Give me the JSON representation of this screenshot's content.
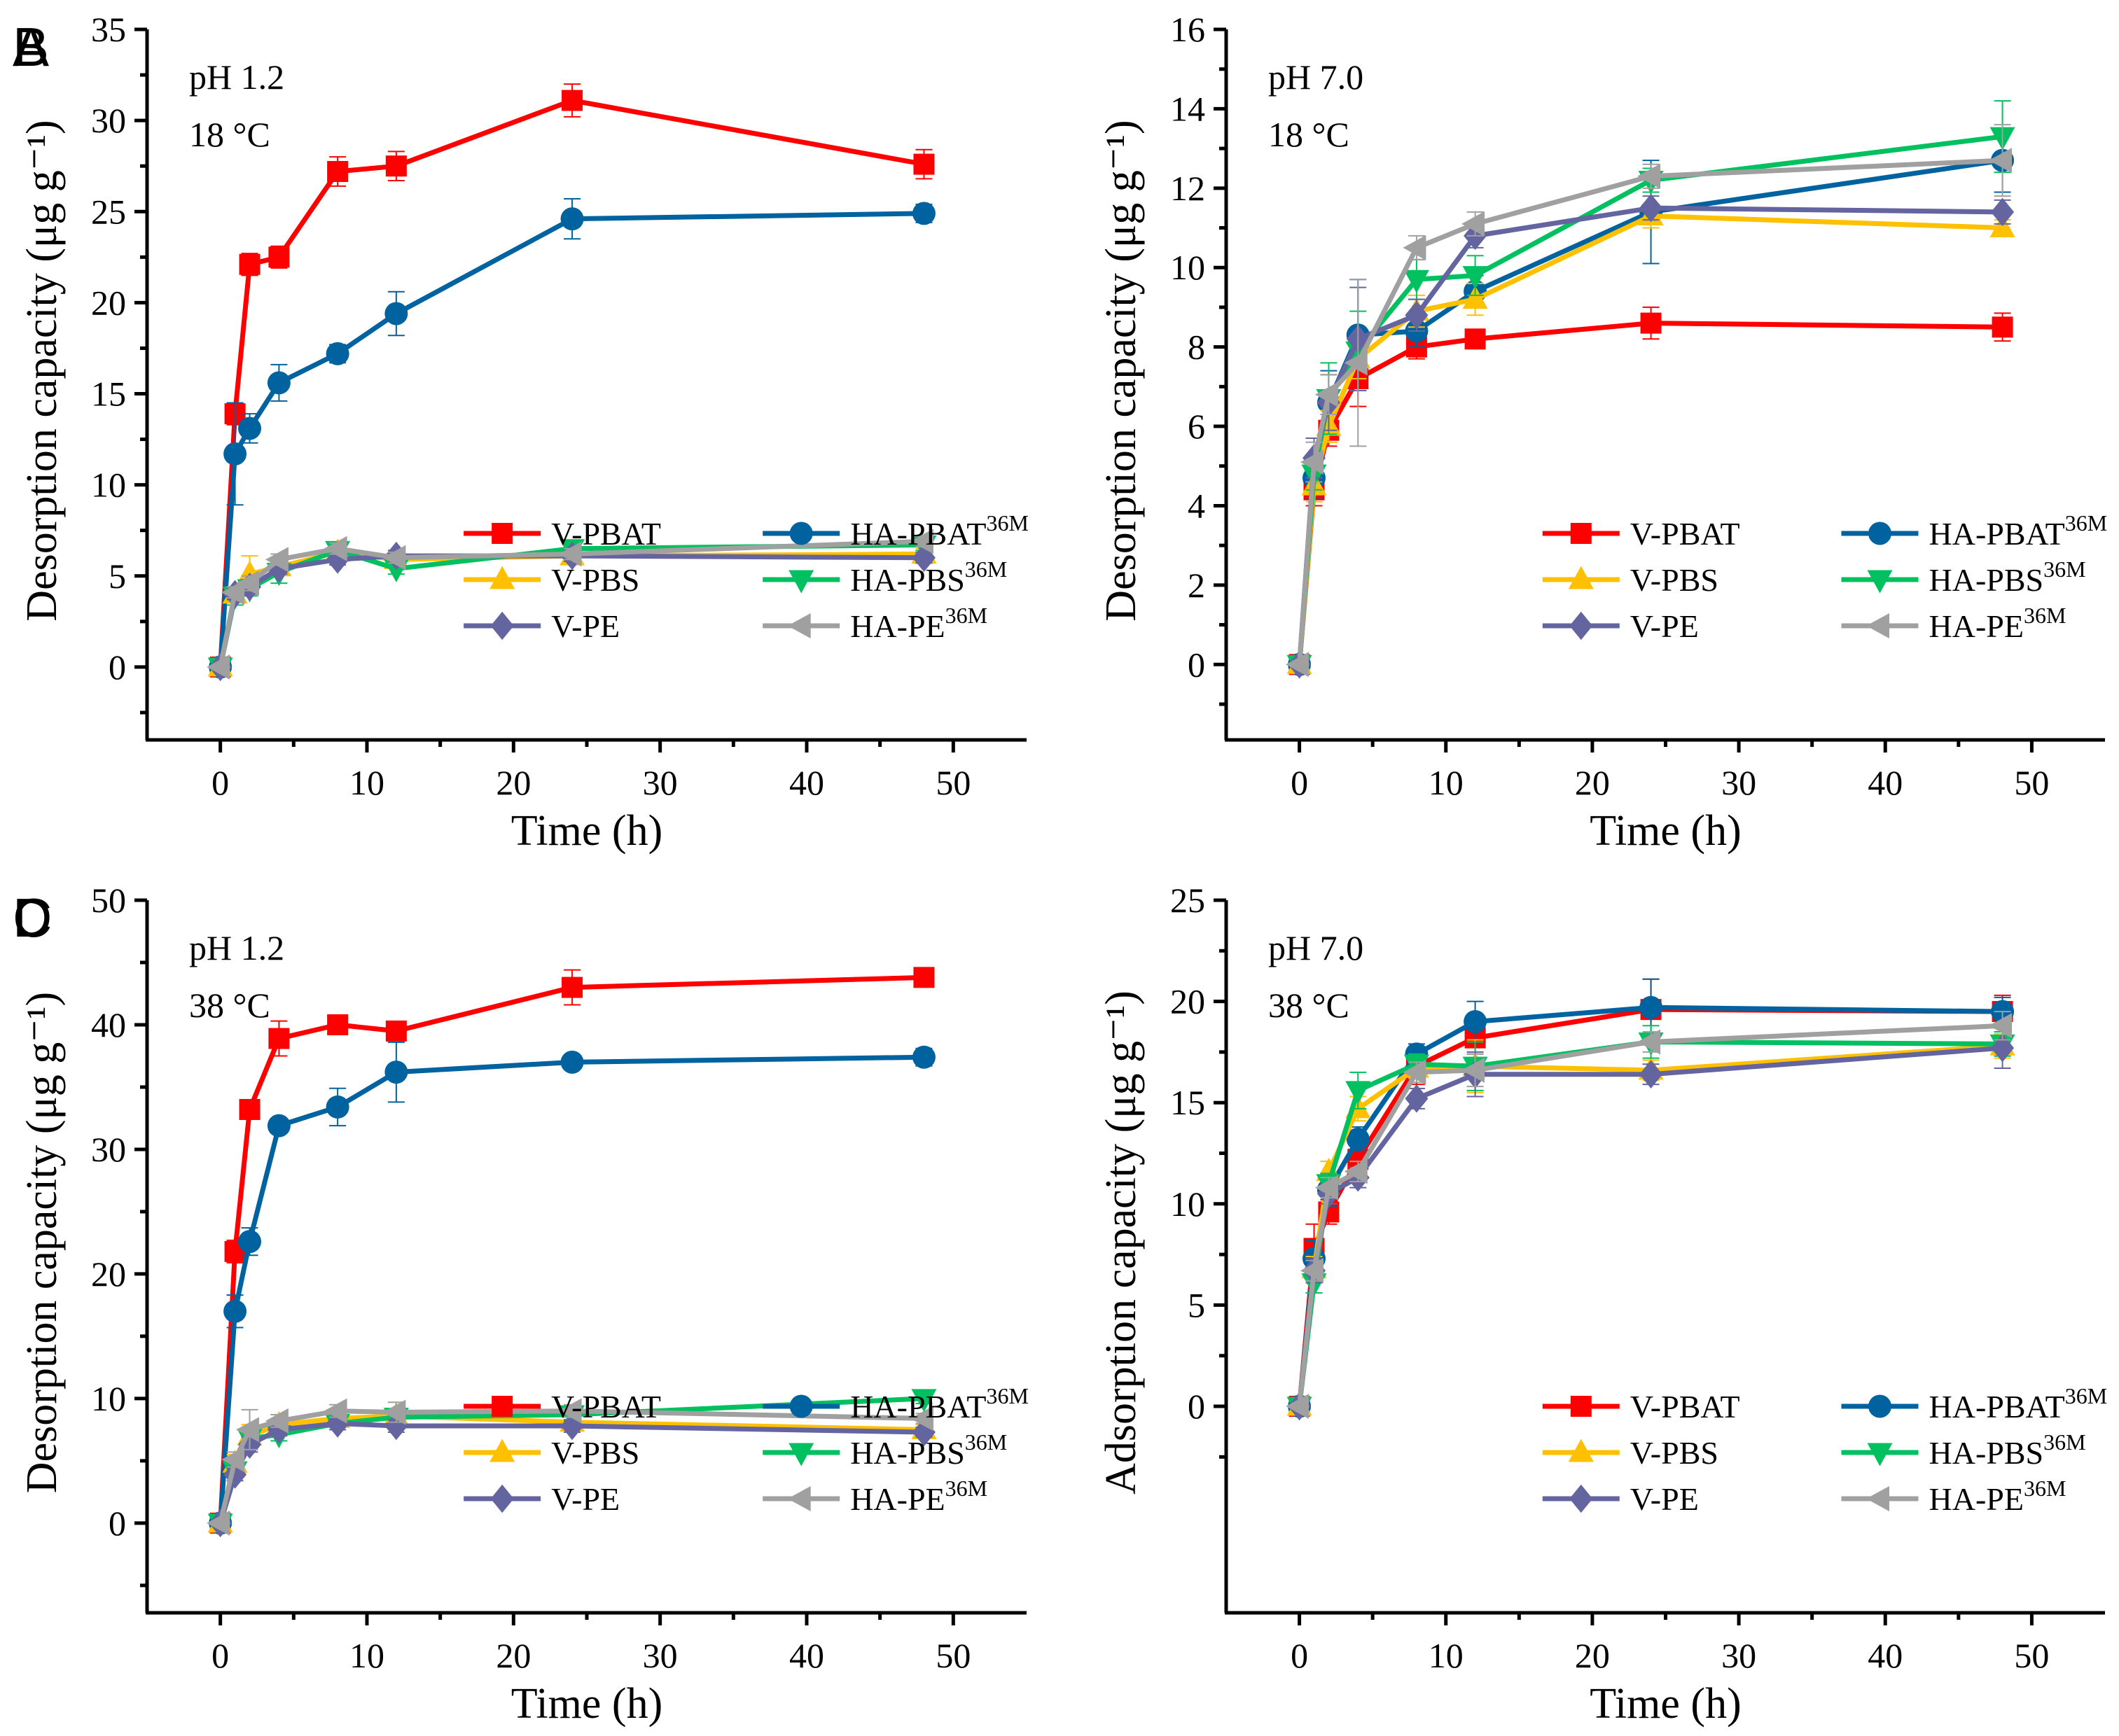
{
  "figure": {
    "series_styles": [
      {
        "name": "V-PBAT",
        "sup": "",
        "color": "#FF0000",
        "marker": "square"
      },
      {
        "name": "HA-PBAT",
        "sup": "36M",
        "color": "#0063A0",
        "marker": "circle"
      },
      {
        "name": "V-PBS",
        "sup": "",
        "color": "#FFC000",
        "marker": "triangle-up"
      },
      {
        "name": "HA-PBS",
        "sup": "36M",
        "color": "#00C060",
        "marker": "triangle-down"
      },
      {
        "name": "V-PE",
        "sup": "",
        "color": "#6464A0",
        "marker": "diamond"
      },
      {
        "name": "HA-PE",
        "sup": "36M",
        "color": "#A0A0A0",
        "marker": "triangle-left"
      }
    ]
  },
  "chart_data": [
    {
      "panel": "A",
      "type": "line",
      "annotation": [
        "pH 1.2",
        "18 °C"
      ],
      "xlabel": "Time (h)",
      "ylabel": "Desorption capacity (μg g⁻¹)",
      "xlim": [
        -5,
        55
      ],
      "ylim": [
        -4,
        35
      ],
      "xticks": [
        0,
        10,
        20,
        30,
        40,
        50
      ],
      "yticks": [
        0,
        5,
        10,
        15,
        20,
        25,
        30,
        35
      ],
      "legend_position": "lower-right",
      "x": [
        0,
        1,
        2,
        4,
        8,
        12,
        24,
        48
      ],
      "series": [
        {
          "name": "V-PBAT",
          "values": [
            0,
            13.9,
            22.1,
            22.5,
            27.2,
            27.5,
            31.1,
            27.6
          ],
          "errors": [
            0,
            0.6,
            0.6,
            0.6,
            0.8,
            0.8,
            0.9,
            0.8
          ]
        },
        {
          "name": "HA-PBAT36M",
          "values": [
            0,
            11.7,
            13.1,
            15.6,
            17.2,
            19.4,
            24.6,
            24.9
          ],
          "errors": [
            0,
            2.8,
            0.8,
            1.0,
            0.5,
            1.2,
            1.1,
            0.5
          ]
        },
        {
          "name": "V-PBS",
          "values": [
            0,
            4.0,
            5.1,
            5.5,
            6.3,
            5.9,
            6.1,
            6.2
          ],
          "errors": [
            0,
            0.4,
            1.0,
            0.4,
            0.3,
            0.3,
            0.3,
            0.3
          ]
        },
        {
          "name": "HA-PBS36M",
          "values": [
            0,
            3.9,
            4.3,
            5.2,
            6.4,
            5.4,
            6.5,
            6.7
          ],
          "errors": [
            0,
            0.5,
            0.4,
            0.6,
            0.3,
            0.3,
            0.3,
            0.3
          ]
        },
        {
          "name": "V-PE",
          "values": [
            0,
            4.0,
            4.4,
            5.4,
            5.9,
            6.1,
            6.1,
            6.0
          ],
          "errors": [
            0,
            0.3,
            0.4,
            0.3,
            0.3,
            0.3,
            0.3,
            0.3
          ]
        },
        {
          "name": "HA-PE36M",
          "values": [
            0,
            4.1,
            4.6,
            5.9,
            6.5,
            6.0,
            6.2,
            6.9
          ],
          "errors": [
            0,
            0.3,
            0.4,
            0.3,
            0.3,
            0.3,
            0.3,
            0.3
          ]
        }
      ]
    },
    {
      "panel": "B",
      "type": "line",
      "annotation": [
        "pH 7.0",
        "18 °C"
      ],
      "xlabel": "Time (h)",
      "ylabel": "Desorption capacity (μg g⁻¹)",
      "xlim": [
        -5,
        55
      ],
      "ylim": [
        -1.9,
        16
      ],
      "xticks": [
        0,
        10,
        20,
        30,
        40,
        50
      ],
      "yticks": [
        0,
        2,
        4,
        6,
        8,
        10,
        12,
        14,
        16
      ],
      "legend_position": "lower-right",
      "x": [
        0,
        1,
        2,
        4,
        8,
        12,
        24,
        48
      ],
      "series": [
        {
          "name": "V-PBAT",
          "values": [
            0,
            4.4,
            5.9,
            7.2,
            8.0,
            8.2,
            8.6,
            8.5
          ],
          "errors": [
            0,
            0.4,
            0.4,
            0.7,
            0.3,
            0.1,
            0.4,
            0.35
          ]
        },
        {
          "name": "HA-PBAT36M",
          "values": [
            0,
            4.7,
            6.6,
            8.3,
            8.4,
            9.4,
            11.4,
            12.7
          ],
          "errors": [
            0,
            0.5,
            0.8,
            1.4,
            0.4,
            0.4,
            1.3,
            0.8
          ]
        },
        {
          "name": "V-PBS",
          "values": [
            0,
            4.5,
            6.0,
            7.7,
            8.9,
            9.2,
            11.3,
            11.0
          ],
          "errors": [
            0,
            0.4,
            0.4,
            0.5,
            0.4,
            0.4,
            0.3,
            0.2
          ]
        },
        {
          "name": "HA-PBS36M",
          "values": [
            0,
            4.8,
            6.7,
            7.9,
            9.7,
            9.8,
            12.2,
            13.3
          ],
          "errors": [
            0,
            0.4,
            0.9,
            1.0,
            0.5,
            0.5,
            0.3,
            0.9
          ]
        },
        {
          "name": "V-PE",
          "values": [
            0,
            5.2,
            6.6,
            8.2,
            8.8,
            10.8,
            11.5,
            11.4
          ],
          "errors": [
            0,
            0.5,
            0.7,
            1.3,
            0.4,
            0.3,
            0.3,
            0.3
          ]
        },
        {
          "name": "HA-PE36M",
          "values": [
            0,
            5.1,
            6.8,
            7.6,
            10.5,
            11.1,
            12.3,
            12.7
          ],
          "errors": [
            0,
            0.5,
            0.5,
            2.1,
            0.3,
            0.3,
            0.3,
            0.9
          ]
        }
      ]
    },
    {
      "panel": "C",
      "type": "line",
      "annotation": [
        "pH 1.2",
        "38 °C"
      ],
      "xlabel": "Time (h)",
      "ylabel": "Desorption capacity (μg g⁻¹)",
      "xlim": [
        -5,
        55
      ],
      "ylim": [
        -7.2,
        50
      ],
      "xticks": [
        0,
        10,
        20,
        30,
        40,
        50
      ],
      "yticks": [
        0,
        10,
        20,
        30,
        40,
        50
      ],
      "legend_position": "lower-right",
      "x": [
        0,
        1,
        2,
        4,
        8,
        12,
        24,
        48
      ],
      "series": [
        {
          "name": "V-PBAT",
          "values": [
            0,
            21.8,
            33.2,
            38.9,
            40.0,
            39.5,
            43.0,
            43.8
          ],
          "errors": [
            0,
            0.9,
            0.5,
            1.4,
            0.5,
            0.6,
            1.4,
            0.5
          ]
        },
        {
          "name": "HA-PBAT36M",
          "values": [
            0,
            17.0,
            22.6,
            31.9,
            33.4,
            36.2,
            37.0,
            37.4
          ],
          "errors": [
            0,
            1.3,
            1.1,
            0.6,
            1.5,
            2.4,
            0.5,
            0.7
          ]
        },
        {
          "name": "V-PBS",
          "values": [
            0,
            4.8,
            7.0,
            7.9,
            8.4,
            8.6,
            8.1,
            7.5
          ],
          "errors": [
            0,
            0.7,
            0.9,
            0.5,
            0.5,
            0.5,
            0.5,
            0.4
          ]
        },
        {
          "name": "HA-PBS36M",
          "values": [
            0,
            4.2,
            6.8,
            7.1,
            8.0,
            8.5,
            8.7,
            10.0
          ],
          "errors": [
            0,
            0.5,
            0.6,
            0.5,
            0.5,
            0.5,
            0.5,
            0.4
          ]
        },
        {
          "name": "V-PE",
          "values": [
            0,
            3.9,
            6.3,
            7.5,
            8.0,
            7.8,
            7.8,
            7.3
          ],
          "errors": [
            0,
            0.5,
            0.6,
            0.5,
            0.5,
            0.5,
            0.5,
            0.4
          ]
        },
        {
          "name": "HA-PE36M",
          "values": [
            0,
            5.1,
            7.5,
            8.2,
            9.0,
            8.9,
            9.0,
            8.4
          ],
          "errors": [
            0,
            0.6,
            1.6,
            0.5,
            0.5,
            0.8,
            0.5,
            0.4
          ]
        }
      ]
    },
    {
      "panel": "D",
      "type": "line",
      "annotation": [
        "pH 7.0",
        "38 °C"
      ],
      "xlabel": "Time (h)",
      "ylabel": "Adsorption capacity (μg g⁻¹)",
      "xlim": [
        -5,
        55
      ],
      "ylim": [
        -10.2,
        25
      ],
      "xticks": [
        0,
        10,
        20,
        30,
        40,
        50
      ],
      "yticks": [
        0,
        5,
        10,
        15,
        20,
        25
      ],
      "legend_position": "lower-right",
      "x": [
        0,
        1,
        2,
        4,
        8,
        12,
        24,
        48
      ],
      "series": [
        {
          "name": "V-PBAT",
          "values": [
            0,
            7.8,
            9.6,
            12.2,
            16.8,
            18.2,
            19.6,
            19.5
          ],
          "errors": [
            0,
            1.2,
            0.6,
            0.8,
            0.9,
            0.8,
            1.5,
            0.8
          ]
        },
        {
          "name": "HA-PBAT36M",
          "values": [
            0,
            7.3,
            10.7,
            13.2,
            17.4,
            19.0,
            19.7,
            19.5
          ],
          "errors": [
            0,
            0.9,
            0.8,
            0.6,
            0.5,
            1.0,
            1.4,
            0.7
          ]
        },
        {
          "name": "V-PBS",
          "values": [
            0,
            6.8,
            11.6,
            14.7,
            16.7,
            16.8,
            16.6,
            17.8
          ],
          "errors": [
            0,
            0.6,
            0.5,
            0.6,
            0.5,
            1.3,
            0.5,
            0.6
          ]
        },
        {
          "name": "HA-PBS36M",
          "values": [
            0,
            6.1,
            11.0,
            15.6,
            16.9,
            16.8,
            18.0,
            17.9
          ],
          "errors": [
            0,
            0.5,
            0.5,
            0.9,
            0.5,
            1.2,
            0.8,
            0.6
          ]
        },
        {
          "name": "V-PE",
          "values": [
            0,
            6.7,
            10.5,
            11.3,
            15.2,
            16.4,
            16.4,
            17.7
          ],
          "errors": [
            0,
            0.6,
            0.5,
            0.5,
            0.5,
            1.1,
            0.5,
            1.0
          ]
        },
        {
          "name": "HA-PE36M",
          "values": [
            0,
            6.7,
            10.8,
            11.6,
            16.5,
            16.6,
            18.0,
            18.8
          ],
          "errors": [
            0,
            0.5,
            0.5,
            0.5,
            0.5,
            0.8,
            0.5,
            0.7
          ]
        }
      ]
    }
  ]
}
